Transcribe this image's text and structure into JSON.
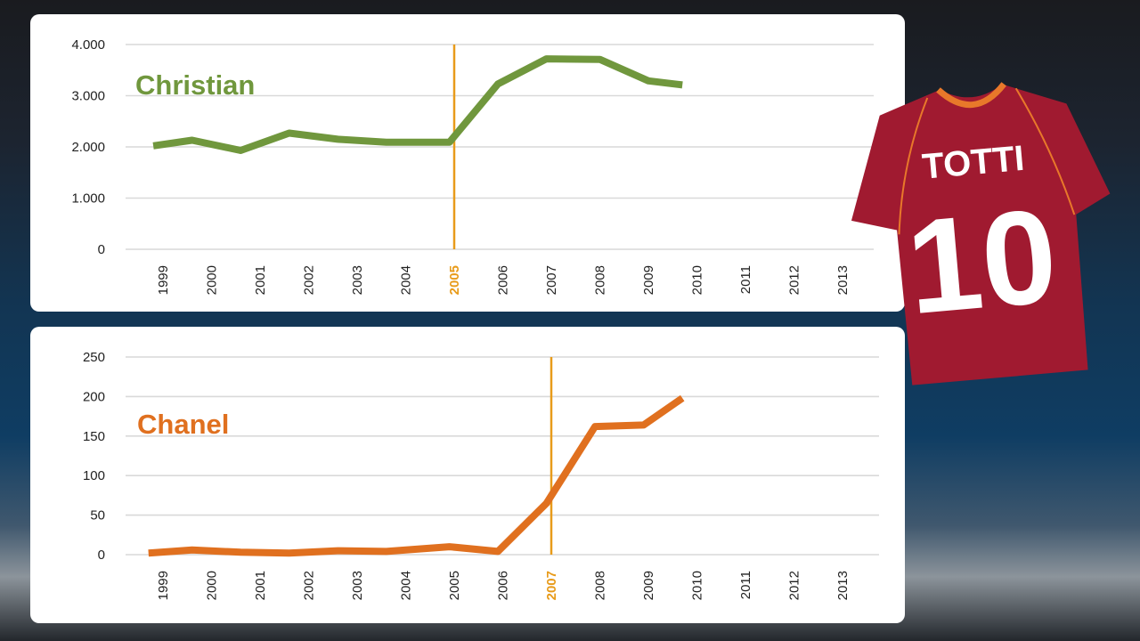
{
  "chart_data": [
    {
      "type": "line",
      "x": [
        "1999",
        "2000",
        "2001",
        "2002",
        "2003",
        "2004",
        "2005",
        "2006",
        "2007",
        "2008",
        "2009",
        "2010",
        "2011",
        "2012",
        "2013"
      ],
      "y_ticks": [
        "4.000",
        "3.000",
        "2.000",
        "1.000",
        "0"
      ],
      "ylim": [
        0,
        4000
      ],
      "series": [
        {
          "name": "Christian",
          "color": "#70973d",
          "points": [
            [
              1998.8,
              2020
            ],
            [
              1999.6,
              2130
            ],
            [
              2000.6,
              1930
            ],
            [
              2001.6,
              2270
            ],
            [
              2002.6,
              2150
            ],
            [
              2003.6,
              2090
            ],
            [
              2004.9,
              2090
            ],
            [
              2005.9,
              3230
            ],
            [
              2006.9,
              3720
            ],
            [
              2008.0,
              3710
            ],
            [
              2009.0,
              3290
            ],
            [
              2009.7,
              3210
            ]
          ]
        }
      ],
      "highlight_year": "2005",
      "highlight_color": "#e89b1a",
      "grid": true
    },
    {
      "type": "line",
      "x": [
        "1999",
        "2000",
        "2001",
        "2002",
        "2003",
        "2004",
        "2005",
        "2006",
        "2007",
        "2008",
        "2009",
        "2010",
        "2011",
        "2012",
        "2013"
      ],
      "y_ticks": [
        "250",
        "200",
        "150",
        "100",
        "50",
        "0"
      ],
      "ylim": [
        0,
        250
      ],
      "series": [
        {
          "name": "Chanel",
          "color": "#e0701f",
          "points": [
            [
              1998.7,
              2
            ],
            [
              1999.6,
              6
            ],
            [
              2000.6,
              3
            ],
            [
              2001.6,
              2
            ],
            [
              2002.6,
              5
            ],
            [
              2003.6,
              4
            ],
            [
              2004.9,
              10
            ],
            [
              2005.9,
              4
            ],
            [
              2006.9,
              65
            ],
            [
              2007.9,
              162
            ],
            [
              2008.9,
              164
            ],
            [
              2009.7,
              198
            ]
          ]
        }
      ],
      "highlight_year": "2007",
      "highlight_color": "#e89b1a",
      "grid": true
    }
  ],
  "jersey": {
    "name": "TOTTI",
    "number": "10",
    "color": "#a01a30",
    "trim_color": "#e8782a"
  }
}
